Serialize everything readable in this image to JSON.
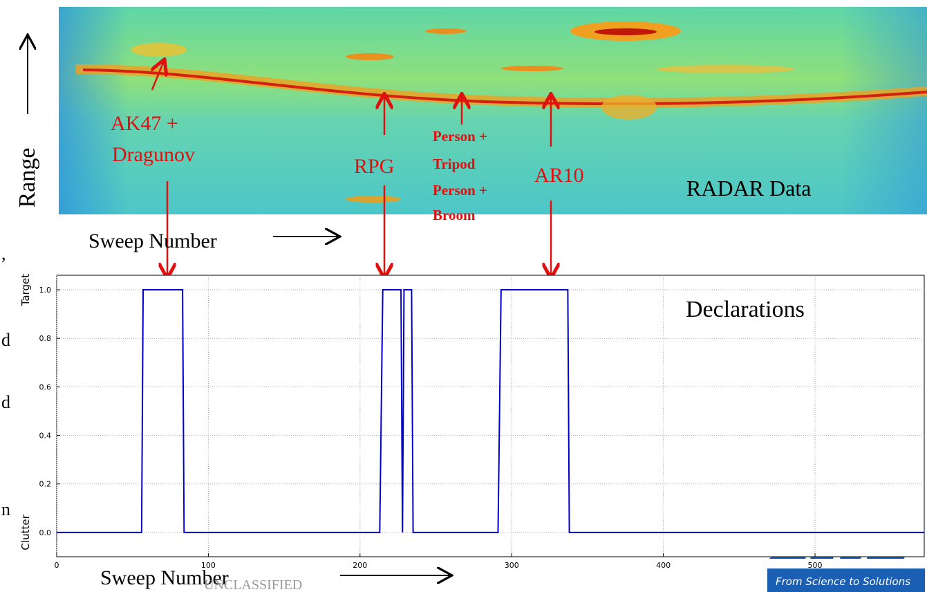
{
  "slide": {
    "range_label": "Range",
    "sweep_label_top": "Sweep Number",
    "sweep_label_bottom": "Sweep Number",
    "radar_label": "RADAR Data",
    "classification": "UNCLASSIFIED",
    "logo_tagline": "From Science to Solutions",
    "fragments": [
      ",",
      "d",
      "d",
      "n"
    ]
  },
  "annotations": {
    "ak47": [
      "AK47 +",
      "Dragunov"
    ],
    "rpg": "RPG",
    "person": [
      "Person +",
      "Tripod",
      "Person +",
      "Broom"
    ],
    "ar10": "AR10"
  },
  "chart_data": {
    "type": "line",
    "title": "Declarations",
    "x": [
      0,
      56,
      57,
      83,
      84,
      213,
      215,
      227,
      228,
      229,
      234,
      235,
      291,
      293,
      337,
      338,
      572
    ],
    "series": [
      {
        "color": "#0000cc",
        "values": [
          0,
          0,
          1,
          1,
          0,
          0,
          1,
          1,
          0,
          1,
          1,
          0,
          0,
          1,
          1,
          0,
          0
        ]
      }
    ],
    "xlim": [
      0,
      572
    ],
    "ylim": [
      -0.1,
      1.06
    ],
    "xticks": [
      0,
      100,
      200,
      300,
      400,
      500
    ],
    "yticks": [
      {
        "value": 0,
        "label": "0.0"
      },
      {
        "value": 0.2,
        "label": "0.2"
      },
      {
        "value": 0.4,
        "label": "0.4"
      },
      {
        "value": 0.6,
        "label": "0.6"
      },
      {
        "value": 0.8,
        "label": "0.8"
      },
      {
        "value": 1,
        "label": "1.0"
      }
    ],
    "y_category_labels": [
      {
        "value": 1,
        "label": "Target"
      },
      {
        "value": 0,
        "label": "Clutter"
      }
    ],
    "grid": true
  }
}
